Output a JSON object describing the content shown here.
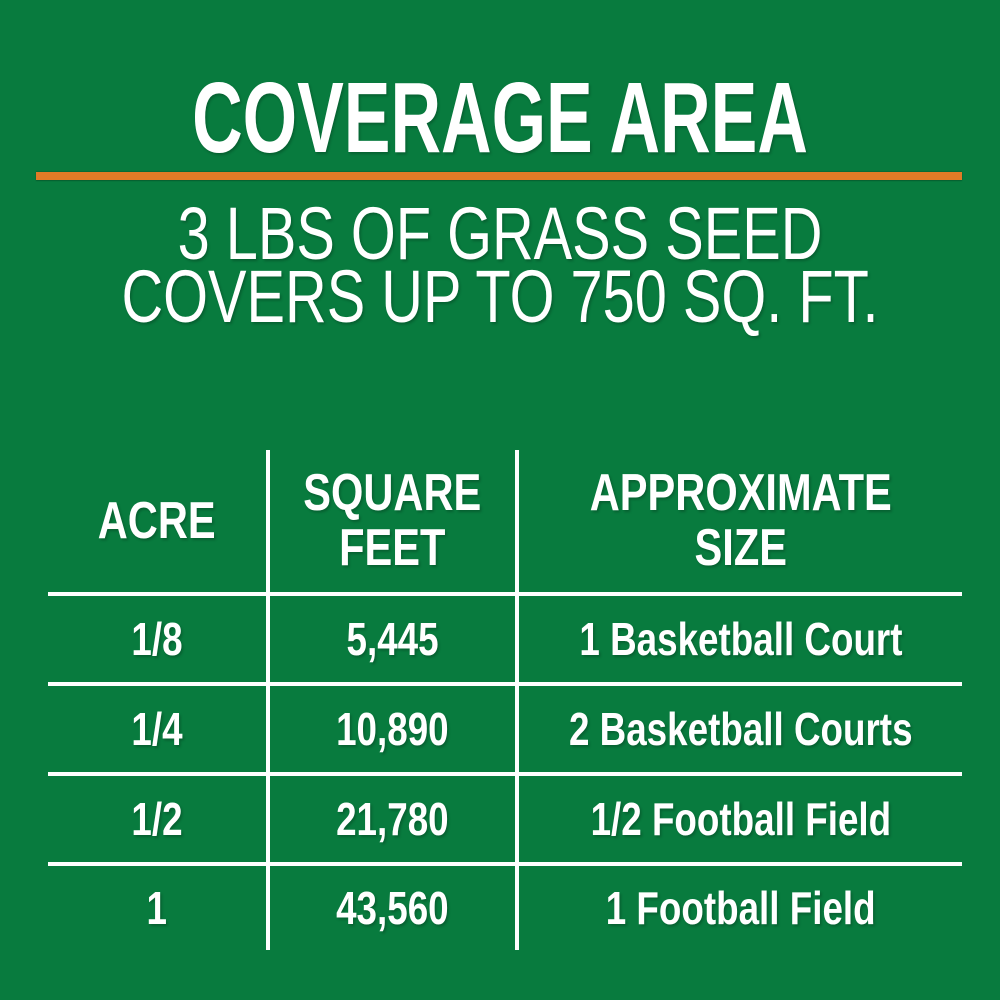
{
  "colors": {
    "background": "#087b3e",
    "accent_orange": "#e07b26",
    "text_white": "#ffffff"
  },
  "header": {
    "title": "COVERAGE AREA",
    "subtitle_line1": "3 LBS OF GRASS SEED",
    "subtitle_line2": "COVERS UP TO 750 SQ. FT."
  },
  "table": {
    "columns": [
      {
        "label": "ACRE"
      },
      {
        "label": "SQUARE\nFEET"
      },
      {
        "label": "APPROXIMATE\nSIZE"
      }
    ],
    "rows": [
      {
        "acre": "1/8",
        "square_feet": "5,445",
        "approximate_size": "1 Basketball Court"
      },
      {
        "acre": "1/4",
        "square_feet": "10,890",
        "approximate_size": "2 Basketball Courts"
      },
      {
        "acre": "1/2",
        "square_feet": "21,780",
        "approximate_size": "1/2 Football Field"
      },
      {
        "acre": "1",
        "square_feet": "43,560",
        "approximate_size": "1 Football Field"
      }
    ]
  },
  "chart_data": {
    "type": "table",
    "title": "COVERAGE AREA",
    "subtitle": "3 LBS OF GRASS SEED COVERS UP TO 750 SQ. FT.",
    "columns": [
      "ACRE",
      "SQUARE FEET",
      "APPROXIMATE SIZE"
    ],
    "rows": [
      [
        "1/8",
        "5,445",
        "1 Basketball Court"
      ],
      [
        "1/4",
        "10,890",
        "2 Basketball Courts"
      ],
      [
        "1/2",
        "21,780",
        "1/2 Football Field"
      ],
      [
        "1",
        "43,560",
        "1 Football Field"
      ]
    ]
  }
}
